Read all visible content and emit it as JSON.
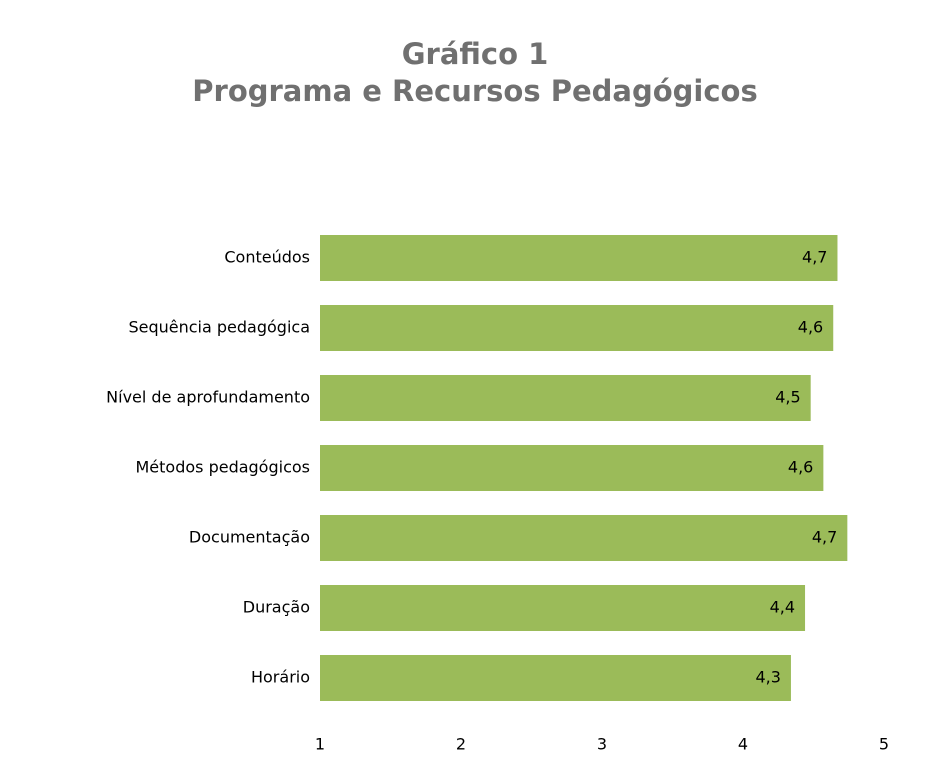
{
  "chart_data": {
    "type": "hbar",
    "title": "Gráfico 1",
    "subtitle": "Programa e Recursos Pedagógicos",
    "categories": [
      "Conteúdos",
      "Sequência pedagógica",
      "Nível de aprofundamento",
      "Métodos pedagógicos",
      "Documentação",
      "Duração",
      "Horário"
    ],
    "values": [
      4.67,
      4.64,
      4.48,
      4.57,
      4.74,
      4.44,
      4.34
    ],
    "value_labels": [
      "4,7",
      "4,6",
      "4,5",
      "4,6",
      "4,7",
      "4,4",
      "4,3"
    ],
    "color": "#9bbb59",
    "xlim": [
      1,
      5
    ],
    "xticks": [
      1,
      2,
      3,
      4,
      5
    ],
    "grid": false
  }
}
